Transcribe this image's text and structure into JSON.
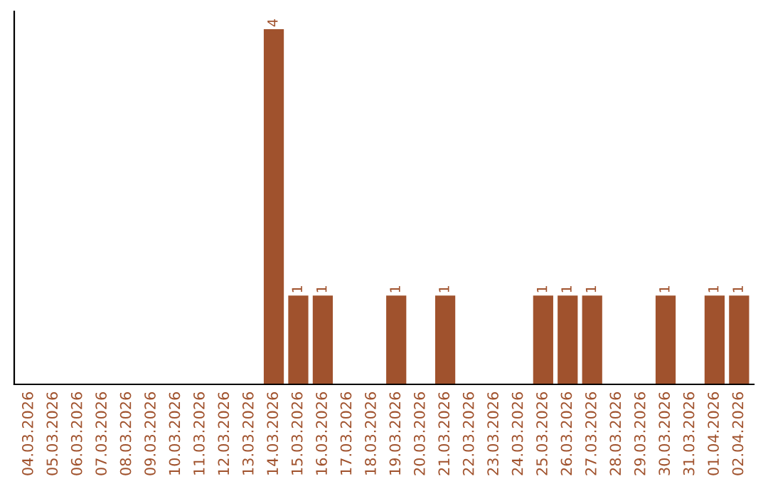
{
  "chart_data": {
    "type": "bar",
    "categories": [
      "04.03.2026",
      "05.03.2026",
      "06.03.2026",
      "07.03.2026",
      "08.03.2026",
      "09.03.2026",
      "10.03.2026",
      "11.03.2026",
      "12.03.2026",
      "13.03.2026",
      "14.03.2026",
      "15.03.2026",
      "16.03.2026",
      "17.03.2026",
      "18.03.2026",
      "19.03.2026",
      "20.03.2026",
      "21.03.2026",
      "22.03.2026",
      "23.03.2026",
      "24.03.2026",
      "25.03.2026",
      "26.03.2026",
      "27.03.2026",
      "28.03.2026",
      "29.03.2026",
      "30.03.2026",
      "31.03.2026",
      "01.04.2026",
      "02.04.2026"
    ],
    "values": [
      0,
      0,
      0,
      0,
      0,
      0,
      0,
      0,
      0,
      0,
      4,
      1,
      1,
      0,
      0,
      1,
      0,
      1,
      0,
      0,
      0,
      1,
      1,
      1,
      0,
      0,
      1,
      0,
      1,
      1
    ],
    "value_labels": [
      null,
      null,
      null,
      null,
      null,
      null,
      null,
      null,
      null,
      null,
      "4",
      "1",
      "1",
      null,
      null,
      "1",
      null,
      "1",
      null,
      null,
      null,
      "1",
      "1",
      "1",
      null,
      null,
      "1",
      null,
      "1",
      "1"
    ],
    "color": "#a0522d",
    "grid": false,
    "tick_labels": "x"
  }
}
